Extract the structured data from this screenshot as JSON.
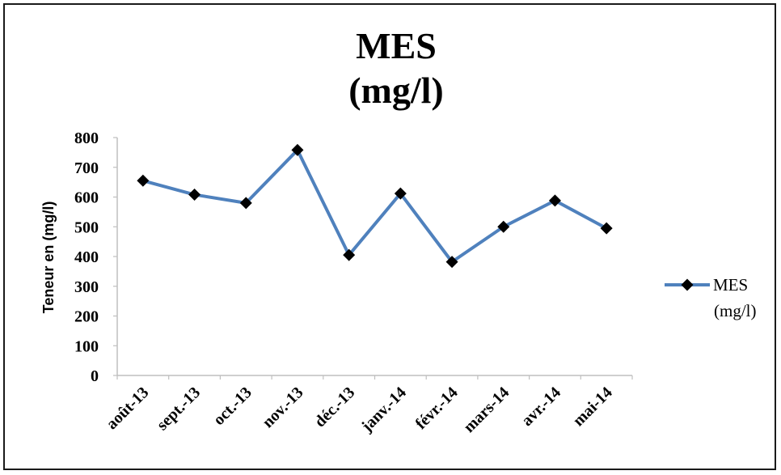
{
  "chart_data": {
    "type": "line",
    "title_lines": [
      "MES",
      "(mg/l)"
    ],
    "ylabel": "Teneur en (mg/l)",
    "xlabel": "",
    "ylim": [
      0,
      800
    ],
    "yticks": [
      0,
      100,
      200,
      300,
      400,
      500,
      600,
      700,
      800
    ],
    "categories": [
      "août-13",
      "sept.-13",
      "oct.-13",
      "nov.-13",
      "déc.-13",
      "janv.-14",
      "févr.-14",
      "mars-14",
      "avr.-14",
      "mai-14"
    ],
    "series": [
      {
        "name": "MES (mg/l)",
        "legend_lines": [
          "MES",
          "(mg/l)"
        ],
        "color": "#4f81bd",
        "marker": "diamond",
        "marker_color": "#000000",
        "values": [
          655,
          608,
          580,
          758,
          405,
          612,
          382,
          500,
          588,
          495
        ]
      }
    ],
    "legend_position": "right",
    "grid": false
  }
}
